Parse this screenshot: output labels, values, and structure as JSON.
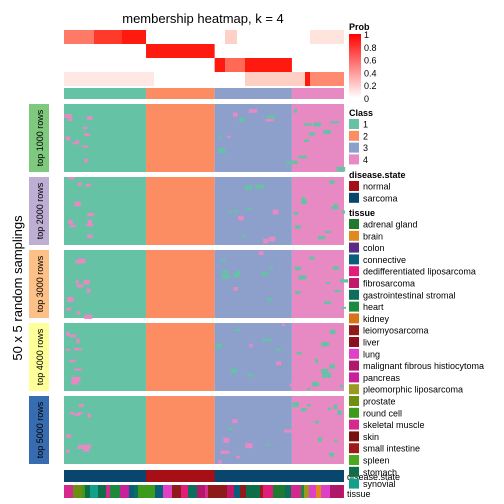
{
  "chart_data": {
    "type": "heatmap",
    "title": "membership heatmap, k = 4",
    "ylabel": "50 x 5 random samplings",
    "row_groups": [
      "top 1000 rows",
      "top 2000 rows",
      "top 3000 rows",
      "top 4000 rows",
      "top 5000 rows"
    ],
    "row_group_colors": [
      "#7FC97F",
      "#BEAED4",
      "#FDC086",
      "#FFFF99",
      "#386CB0"
    ],
    "column_class_segments": [
      {
        "class": "1",
        "fraction": 0.293
      },
      {
        "class": "2",
        "fraction": 0.245
      },
      {
        "class": "3",
        "fraction": 0.276
      },
      {
        "class": "4",
        "fraction": 0.186
      }
    ],
    "annotation_labels": {
      "class": "Class",
      "disease_state": "disease.state",
      "tissue": "tissue"
    },
    "prob_legend": {
      "title": "Prob",
      "ticks": [
        "1",
        "0.8",
        "0.6",
        "0.4",
        "0.2",
        "0"
      ]
    },
    "class_legend": {
      "title": "Class",
      "items": [
        {
          "label": "1",
          "color": "#66C2A5"
        },
        {
          "label": "2",
          "color": "#FC8D62"
        },
        {
          "label": "3",
          "color": "#8DA0CB"
        },
        {
          "label": "4",
          "color": "#E78AC3"
        }
      ]
    },
    "disease_legend": {
      "title": "disease.state",
      "items": [
        {
          "label": "normal",
          "color": "#A50F15"
        },
        {
          "label": "sarcoma",
          "color": "#08466E"
        }
      ]
    },
    "tissue_legend": {
      "title": "tissue",
      "items": [
        {
          "label": "adrenal gland",
          "color": "#1E7A2E"
        },
        {
          "label": "brain",
          "color": "#E08A1E"
        },
        {
          "label": "colon",
          "color": "#5A2A86"
        },
        {
          "label": "connective",
          "color": "#0B5E7A"
        },
        {
          "label": "dedifferentiated liposarcoma",
          "color": "#E01E7A"
        },
        {
          "label": "fibrosarcoma",
          "color": "#C2186B"
        },
        {
          "label": "gastrointestinal stromal",
          "color": "#0E6E5E"
        },
        {
          "label": "heart",
          "color": "#1C8A3C"
        },
        {
          "label": "kidney",
          "color": "#D9731A"
        },
        {
          "label": "leiomyosarcoma",
          "color": "#8E1A1A"
        },
        {
          "label": "liver",
          "color": "#8A1020"
        },
        {
          "label": "lung",
          "color": "#E040C8"
        },
        {
          "label": "malignant fibrous histiocytoma",
          "color": "#B0186A"
        },
        {
          "label": "pancreas",
          "color": "#C8209A"
        },
        {
          "label": "pleomorphic liposarcoma",
          "color": "#9A9A20"
        },
        {
          "label": "prostate",
          "color": "#6E8E12"
        },
        {
          "label": "round cell",
          "color": "#3E9A1A"
        },
        {
          "label": "skeletal muscle",
          "color": "#D42A8E"
        },
        {
          "label": "skin",
          "color": "#7A1010"
        },
        {
          "label": "small intestine",
          "color": "#A01818"
        },
        {
          "label": "spleen",
          "color": "#4CA81E"
        },
        {
          "label": "stomach",
          "color": "#0E6E4A"
        },
        {
          "label": "synovial",
          "color": "#12A08A"
        }
      ]
    }
  }
}
